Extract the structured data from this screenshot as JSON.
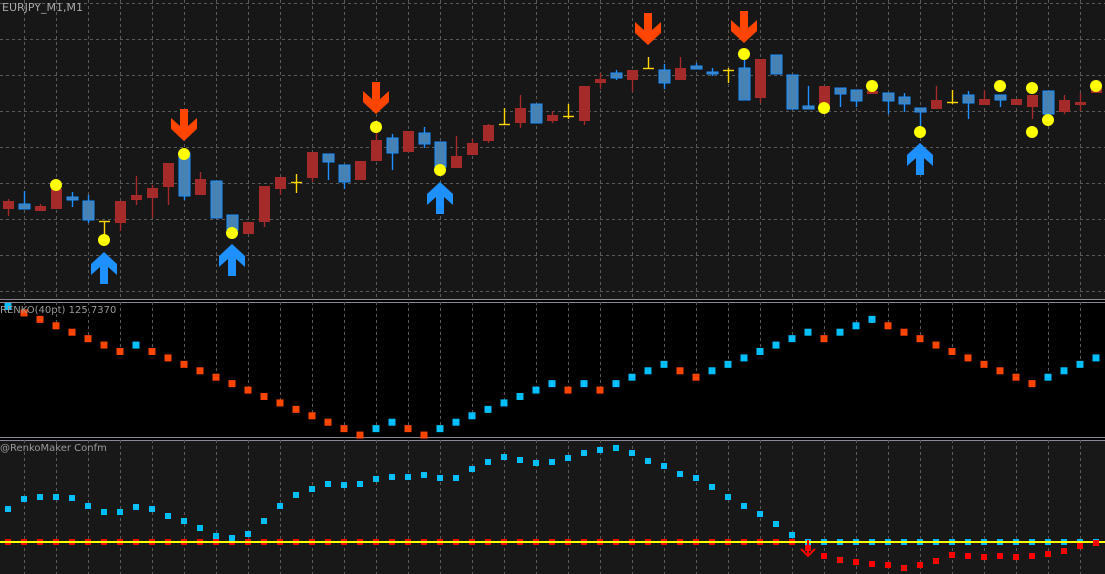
{
  "window": {
    "title": "EURJPY_M1,M1"
  },
  "colors": {
    "background_main": "#171717",
    "background_renko": "#000000",
    "background_confirm": "#181818",
    "grid": "#5a5a5a",
    "separator": "#8a8a96",
    "bull_candle": "#a52a2a",
    "bear_candle": "#4682b4",
    "bear_wick": "#1e90ff",
    "doji": "#ffd700",
    "signal_dot": "#ffff00",
    "down_arrow": "#ff4500",
    "up_arrow": "#1e90ff",
    "renko_up": "#00bfff",
    "renko_down": "#ff4500",
    "confirm_up": "#00bfff",
    "confirm_down": "#ff0000",
    "zero_line": "#ffff00"
  },
  "chart_data": [
    {
      "type": "candlestick",
      "pane": "main",
      "title": "EURJPY_M1,M1",
      "ylim": [
        125.7,
        126.0
      ],
      "grid": true,
      "candles_ohlc": [
        [
          125.791,
          125.801,
          125.784,
          125.799
        ],
        [
          125.796,
          125.809,
          125.791,
          125.791
        ],
        [
          125.789,
          125.796,
          125.789,
          125.794
        ],
        [
          125.791,
          125.813,
          125.791,
          125.811
        ],
        [
          125.803,
          125.808,
          125.793,
          125.8
        ],
        [
          125.799,
          125.805,
          125.777,
          125.78
        ],
        [
          125.779,
          125.779,
          125.765,
          125.779
        ],
        [
          125.777,
          125.799,
          125.769,
          125.799
        ],
        [
          125.8,
          125.824,
          125.795,
          125.805
        ],
        [
          125.802,
          125.815,
          125.782,
          125.812
        ],
        [
          125.813,
          125.837,
          125.795,
          125.837
        ],
        [
          125.847,
          125.847,
          125.8,
          125.804
        ],
        [
          125.805,
          125.828,
          125.805,
          125.821
        ],
        [
          125.819,
          125.819,
          125.782,
          125.782
        ],
        [
          125.785,
          125.785,
          125.77,
          125.77
        ],
        [
          125.766,
          125.778,
          125.766,
          125.778
        ],
        [
          125.778,
          125.814,
          125.773,
          125.814
        ],
        [
          125.811,
          125.823,
          125.805,
          125.823
        ],
        [
          125.818,
          125.826,
          125.807,
          125.818
        ],
        [
          125.822,
          125.848,
          125.818,
          125.848
        ],
        [
          125.846,
          125.846,
          125.82,
          125.838
        ],
        [
          125.835,
          125.835,
          125.811,
          125.818
        ],
        [
          125.82,
          125.839,
          125.82,
          125.839
        ],
        [
          125.839,
          125.87,
          125.839,
          125.86
        ],
        [
          125.862,
          125.866,
          125.83,
          125.847
        ],
        [
          125.848,
          125.869,
          125.848,
          125.869
        ],
        [
          125.867,
          125.873,
          125.852,
          125.856
        ],
        [
          125.858,
          125.858,
          125.833,
          125.833
        ],
        [
          125.832,
          125.864,
          125.832,
          125.844
        ],
        [
          125.845,
          125.861,
          125.845,
          125.857
        ],
        [
          125.859,
          125.876,
          125.857,
          125.875
        ],
        [
          125.876,
          125.892,
          125.876,
          125.876
        ],
        [
          125.877,
          125.905,
          125.872,
          125.892
        ],
        [
          125.896,
          125.896,
          125.877,
          125.877
        ],
        [
          125.879,
          125.889,
          125.877,
          125.885
        ],
        [
          125.884,
          125.896,
          125.881,
          125.884
        ],
        [
          125.879,
          125.914,
          125.875,
          125.914
        ],
        [
          125.917,
          125.927,
          125.911,
          125.921
        ],
        [
          125.927,
          125.93,
          125.92,
          125.922
        ],
        [
          125.92,
          125.93,
          125.908,
          125.93
        ],
        [
          125.932,
          125.943,
          125.932,
          125.932
        ],
        [
          125.93,
          125.936,
          125.911,
          125.917
        ],
        [
          125.92,
          125.943,
          125.92,
          125.932
        ],
        [
          125.934,
          125.937,
          125.931,
          125.931
        ],
        [
          125.928,
          125.932,
          125.924,
          125.926
        ],
        [
          125.93,
          125.932,
          125.917,
          125.93
        ],
        [
          125.932,
          125.94,
          125.9,
          125.9
        ],
        [
          125.902,
          125.941,
          125.897,
          125.941
        ],
        [
          125.945,
          125.945,
          125.926,
          125.926
        ],
        [
          125.925,
          125.925,
          125.891,
          125.891
        ],
        [
          125.894,
          125.914,
          125.891,
          125.891
        ],
        [
          125.892,
          125.914,
          125.892,
          125.914
        ],
        [
          125.912,
          125.912,
          125.893,
          125.906
        ],
        [
          125.91,
          125.91,
          125.893,
          125.899
        ],
        [
          125.906,
          125.909,
          125.906,
          125.909
        ],
        [
          125.907,
          125.907,
          125.886,
          125.899
        ],
        [
          125.903,
          125.907,
          125.888,
          125.896
        ],
        [
          125.892,
          125.892,
          125.869,
          125.888
        ],
        [
          125.891,
          125.914,
          125.891,
          125.9
        ],
        [
          125.898,
          125.91,
          125.896,
          125.898
        ],
        [
          125.905,
          125.909,
          125.881,
          125.897
        ],
        [
          125.895,
          125.91,
          125.895,
          125.901
        ],
        [
          125.905,
          125.905,
          125.893,
          125.9
        ],
        [
          125.895,
          125.901,
          125.895,
          125.901
        ],
        [
          125.893,
          125.905,
          125.881,
          125.905
        ],
        [
          125.909,
          125.909,
          125.886,
          125.886
        ],
        [
          125.888,
          125.905,
          125.886,
          125.9
        ],
        [
          125.895,
          125.907,
          125.889,
          125.898
        ],
        [
          125.907,
          125.914,
          125.907,
          125.912
        ]
      ],
      "signal_dots": [
        {
          "bar": 3,
          "price": 125.815
        },
        {
          "bar": 6,
          "price": 125.76
        },
        {
          "bar": 11,
          "price": 125.846
        },
        {
          "bar": 14,
          "price": 125.767
        },
        {
          "bar": 23,
          "price": 125.873
        },
        {
          "bar": 27,
          "price": 125.83
        },
        {
          "bar": 46,
          "price": 125.946
        },
        {
          "bar": 51,
          "price": 125.892
        },
        {
          "bar": 54,
          "price": 125.914
        },
        {
          "bar": 57,
          "price": 125.868
        },
        {
          "bar": 62,
          "price": 125.914
        },
        {
          "bar": 64,
          "price": 125.912
        },
        {
          "bar": 64,
          "price": 125.868
        },
        {
          "bar": 65,
          "price": 125.88
        },
        {
          "bar": 68,
          "price": 125.914
        }
      ],
      "arrows": [
        {
          "bar": 11,
          "direction": "down",
          "price": 125.859
        },
        {
          "bar": 23,
          "direction": "down",
          "price": 125.886
        },
        {
          "bar": 40,
          "direction": "down",
          "price": 125.955
        },
        {
          "bar": 46,
          "direction": "down",
          "price": 125.957
        },
        {
          "bar": 6,
          "direction": "up",
          "price": 125.748
        },
        {
          "bar": 14,
          "direction": "up",
          "price": 125.756
        },
        {
          "bar": 27,
          "direction": "up",
          "price": 125.818
        },
        {
          "bar": 57,
          "direction": "up",
          "price": 125.857
        }
      ]
    },
    {
      "type": "scatter",
      "pane": "renko",
      "title": "RENKO(40pt) 125.7370",
      "ylim": [
        125.245,
        126.085
      ],
      "values": [
        126.057,
        126.017,
        125.977,
        125.937,
        125.897,
        125.857,
        125.817,
        125.777,
        125.817,
        125.777,
        125.737,
        125.697,
        125.657,
        125.617,
        125.577,
        125.537,
        125.497,
        125.457,
        125.417,
        125.377,
        125.337,
        125.297,
        125.257,
        125.297,
        125.337,
        125.297,
        125.257,
        125.297,
        125.337,
        125.377,
        125.417,
        125.457,
        125.497,
        125.537,
        125.577,
        125.537,
        125.577,
        125.537,
        125.577,
        125.617,
        125.657,
        125.697,
        125.657,
        125.617,
        125.657,
        125.697,
        125.737,
        125.777,
        125.817,
        125.857,
        125.897,
        125.857,
        125.897,
        125.937,
        125.977,
        125.937,
        125.897,
        125.857,
        125.817,
        125.777,
        125.737,
        125.697,
        125.657,
        125.617,
        125.577,
        125.617,
        125.657,
        125.697,
        125.737
      ],
      "direction": [
        "up",
        "down",
        "down",
        "down",
        "down",
        "down",
        "down",
        "down",
        "up",
        "down",
        "down",
        "down",
        "down",
        "down",
        "down",
        "down",
        "down",
        "down",
        "down",
        "down",
        "down",
        "down",
        "down",
        "up",
        "up",
        "down",
        "down",
        "up",
        "up",
        "up",
        "up",
        "up",
        "up",
        "up",
        "up",
        "down",
        "up",
        "down",
        "up",
        "up",
        "up",
        "up",
        "down",
        "down",
        "up",
        "up",
        "up",
        "up",
        "up",
        "up",
        "up",
        "down",
        "up",
        "up",
        "up",
        "down",
        "down",
        "down",
        "down",
        "down",
        "down",
        "down",
        "down",
        "down",
        "down",
        "up",
        "up",
        "up",
        "up"
      ]
    },
    {
      "type": "scatter",
      "pane": "confirm",
      "title": "@RenkoMaker Confm",
      "ylim": [
        -0.32,
        1.02
      ],
      "zero_line": 0,
      "series": [
        {
          "color_key": "confirm_up",
          "values": [
            0.33,
            0.43,
            0.45,
            0.45,
            0.44,
            0.36,
            0.3,
            0.3,
            0.35,
            0.33,
            0.26,
            0.21,
            0.14,
            0.06,
            0.04,
            0.08,
            0.21,
            0.36,
            0.47,
            0.53,
            0.58,
            0.57,
            0.58,
            0.63,
            0.65,
            0.65,
            0.67,
            0.64,
            0.64,
            0.73,
            0.8,
            0.85,
            0.82,
            0.79,
            0.8,
            0.84,
            0.89,
            0.92,
            0.94,
            0.89,
            0.81,
            0.76,
            0.68,
            0.64,
            0.55,
            0.45,
            0.36,
            0.28,
            0.18,
            0.07,
            0,
            0,
            0,
            0,
            0,
            0,
            0,
            0,
            0,
            0,
            0,
            0,
            0,
            0,
            0,
            0,
            0,
            0,
            0
          ]
        },
        {
          "color_key": "confirm_down",
          "values": [
            0,
            0,
            0,
            0,
            0,
            0,
            0,
            0,
            0,
            0,
            0,
            0,
            0,
            0,
            0,
            0,
            0,
            0,
            0,
            0,
            0,
            0,
            0,
            0,
            0,
            0,
            0,
            0,
            0,
            0,
            0,
            0,
            0,
            0,
            0,
            0,
            0,
            0,
            0,
            0,
            0,
            0,
            0,
            0,
            0,
            0,
            0,
            0,
            0,
            0,
            -0.06,
            -0.14,
            -0.18,
            -0.2,
            -0.22,
            -0.23,
            -0.26,
            -0.23,
            -0.19,
            -0.13,
            -0.14,
            -0.15,
            -0.14,
            -0.15,
            -0.14,
            -0.12,
            -0.09,
            -0.04,
            -0.01
          ]
        }
      ],
      "arrows": [
        {
          "bar": 50,
          "direction": "down"
        }
      ]
    }
  ]
}
